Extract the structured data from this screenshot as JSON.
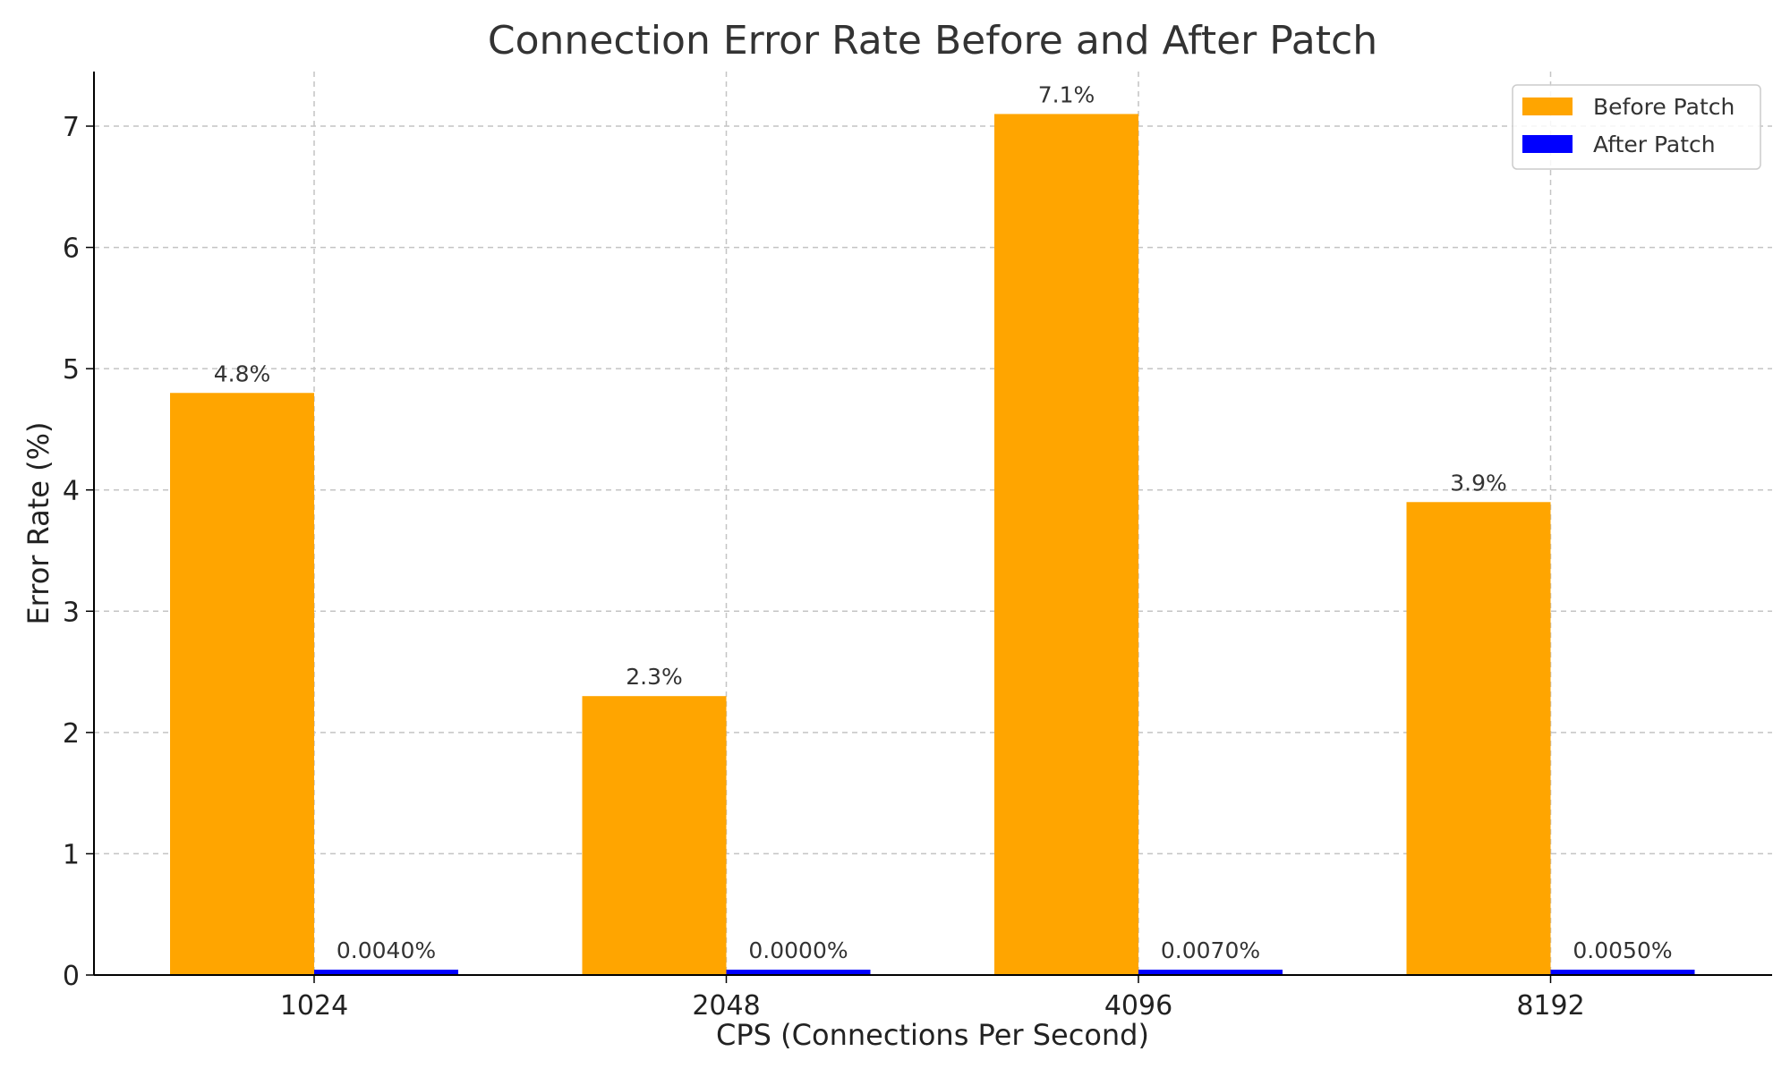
{
  "chart_data": {
    "type": "bar",
    "title": "Connection Error Rate Before and After Patch",
    "xlabel": "CPS (Connections Per Second)",
    "ylabel": "Error Rate (%)",
    "categories": [
      "1024",
      "2048",
      "4096",
      "8192"
    ],
    "series": [
      {
        "name": "Before Patch",
        "color": "#ffa500",
        "values": [
          4.8,
          2.3,
          7.1,
          3.9
        ],
        "labels": [
          "4.8%",
          "2.3%",
          "7.1%",
          "3.9%"
        ]
      },
      {
        "name": "After Patch",
        "color": "#0000ff",
        "values": [
          0.004,
          0.0,
          0.007,
          0.005
        ],
        "labels": [
          "0.0040%",
          "0.0000%",
          "0.0070%",
          "0.0050%"
        ]
      }
    ],
    "ylim": [
      0,
      7.45
    ],
    "yticks": [
      0,
      1,
      2,
      3,
      4,
      5,
      6,
      7
    ],
    "grid": true,
    "legend_position": "top-right"
  }
}
